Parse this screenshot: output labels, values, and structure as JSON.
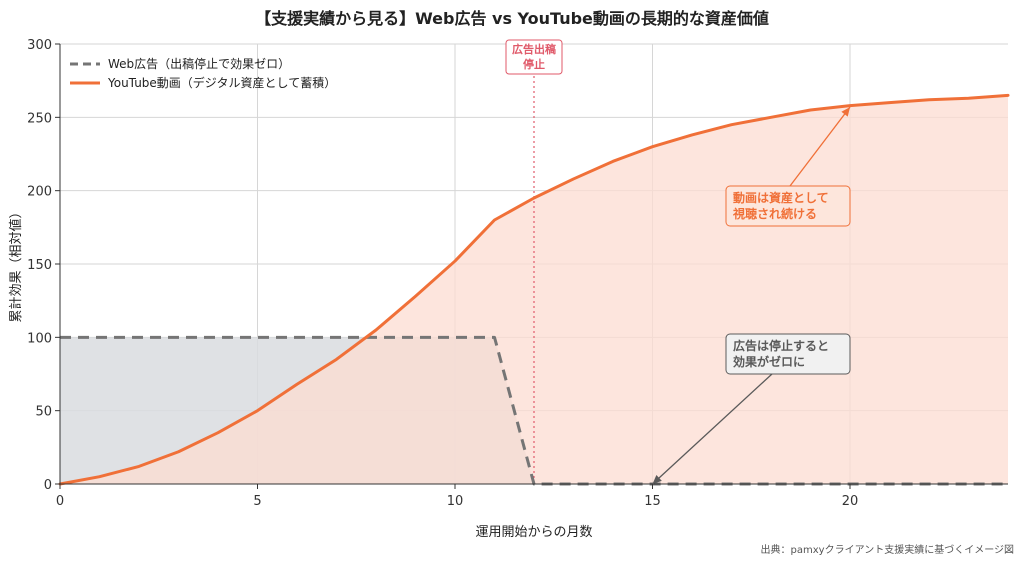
{
  "chart_data": {
    "type": "line",
    "title": "【支援実績から見る】Web広告 vs YouTube動画の長期的な資産価値",
    "xlabel": "運用開始からの月数",
    "ylabel": "累計効果（相対値）",
    "xlim": [
      0,
      24
    ],
    "ylim": [
      0,
      300
    ],
    "x_ticks": [
      0,
      5,
      10,
      15,
      20
    ],
    "y_ticks": [
      0,
      50,
      100,
      150,
      200,
      250,
      300
    ],
    "grid": true,
    "legend_position": "top-left",
    "series": [
      {
        "name": "Web広告（出稿停止で効果ゼロ）",
        "color": "#757575",
        "style": "dashed",
        "fill": "#d9dcdf",
        "points": [
          [
            0,
            100
          ],
          [
            11,
            100
          ],
          [
            12,
            0
          ],
          [
            24,
            0
          ]
        ]
      },
      {
        "name": "YouTube動画（デジタル資産として蓄積）",
        "color": "#f07038",
        "style": "solid",
        "fill": "#fcdcd1",
        "points": [
          [
            0,
            0
          ],
          [
            1,
            5
          ],
          [
            2,
            12
          ],
          [
            3,
            22
          ],
          [
            4,
            35
          ],
          [
            5,
            50
          ],
          [
            6,
            68
          ],
          [
            7,
            85
          ],
          [
            8,
            105
          ],
          [
            9,
            128
          ],
          [
            10,
            152
          ],
          [
            11,
            180
          ],
          [
            12,
            195
          ],
          [
            13,
            208
          ],
          [
            14,
            220
          ],
          [
            15,
            230
          ],
          [
            16,
            238
          ],
          [
            17,
            245
          ],
          [
            18,
            250
          ],
          [
            19,
            255
          ],
          [
            20,
            258
          ],
          [
            21,
            260
          ],
          [
            22,
            262
          ],
          [
            23,
            263
          ],
          [
            24,
            265
          ]
        ]
      }
    ],
    "stop_line": {
      "x": 12,
      "label_lines": [
        "広告出稿",
        "停止"
      ],
      "color": "#e05a6a"
    },
    "annotations": [
      {
        "lines": [
          "動画は資産として",
          "視聴され続ける"
        ],
        "target": [
          20,
          257
        ],
        "color": "#f07038",
        "bg": "#fde6dc"
      },
      {
        "lines": [
          "広告は停止すると",
          "効果がゼロに"
        ],
        "target": [
          15,
          0
        ],
        "color": "#5a5a5a",
        "bg": "#f1f1f1"
      }
    ],
    "source": "出典：pamxyクライアント支援実績に基づくイメージ図"
  }
}
